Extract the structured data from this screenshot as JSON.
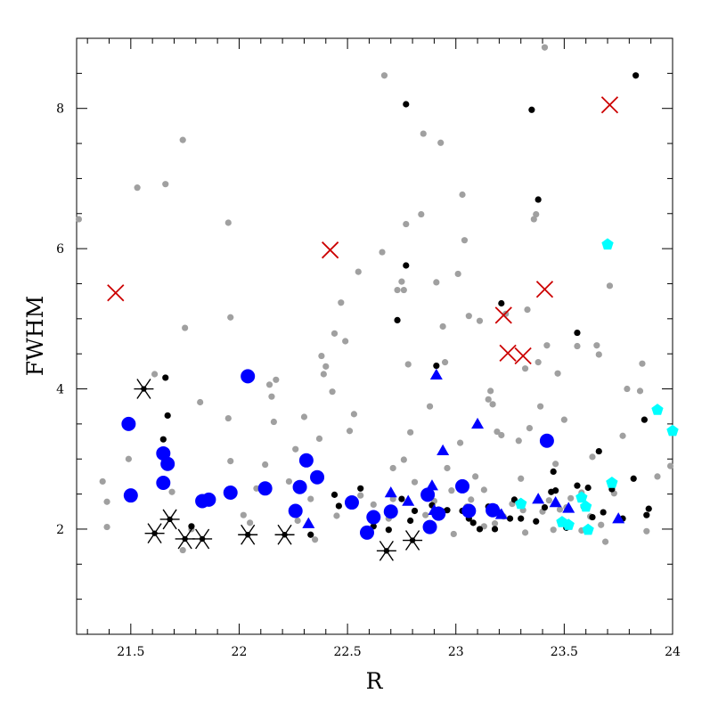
{
  "chart_data": {
    "type": "scatter",
    "title": "",
    "xlabel": "R",
    "ylabel": "FWHM",
    "xlim": [
      21.25,
      24.0
    ],
    "ylim": [
      0.5,
      9.0
    ],
    "grid": false,
    "legend": "none",
    "x_ticks": [
      "21.5",
      "22",
      "22.5",
      "23",
      "23.5",
      "24"
    ],
    "x_tick_values": [
      21.5,
      22.0,
      22.5,
      23.0,
      23.5,
      24.0
    ],
    "y_ticks": [
      "2",
      "4",
      "6",
      "8"
    ],
    "y_tick_values": [
      2,
      4,
      6,
      8
    ],
    "series": [
      {
        "marker": "small-circle",
        "color": "#a0a0a0",
        "points": [
          [
            21.26,
            6.42
          ],
          [
            21.37,
            2.68
          ],
          [
            21.39,
            2.39
          ],
          [
            21.39,
            2.03
          ],
          [
            21.53,
            6.87
          ],
          [
            21.49,
            3.0
          ],
          [
            21.61,
            4.21
          ],
          [
            21.66,
            6.92
          ],
          [
            21.69,
            2.53
          ],
          [
            21.74,
            7.55
          ],
          [
            21.75,
            4.87
          ],
          [
            21.74,
            1.7
          ],
          [
            21.78,
            2.0
          ],
          [
            21.82,
            3.81
          ],
          [
            21.95,
            6.37
          ],
          [
            21.95,
            3.58
          ],
          [
            21.96,
            5.02
          ],
          [
            21.96,
            2.97
          ],
          [
            22.02,
            2.2
          ],
          [
            22.05,
            2.09
          ],
          [
            22.08,
            2.58
          ],
          [
            22.12,
            2.92
          ],
          [
            22.14,
            4.06
          ],
          [
            22.15,
            3.89
          ],
          [
            22.17,
            4.13
          ],
          [
            22.16,
            3.53
          ],
          [
            22.23,
            2.68
          ],
          [
            22.26,
            3.14
          ],
          [
            22.27,
            2.12
          ],
          [
            22.3,
            3.6
          ],
          [
            22.33,
            2.43
          ],
          [
            22.35,
            1.85
          ],
          [
            22.37,
            3.29
          ],
          [
            22.38,
            4.47
          ],
          [
            22.39,
            4.21
          ],
          [
            22.4,
            4.32
          ],
          [
            22.43,
            3.96
          ],
          [
            22.44,
            4.79
          ],
          [
            22.47,
            5.23
          ],
          [
            22.49,
            4.68
          ],
          [
            22.51,
            3.4
          ],
          [
            22.53,
            3.64
          ],
          [
            22.55,
            5.67
          ],
          [
            22.56,
            2.48
          ],
          [
            22.58,
            2.0
          ],
          [
            22.6,
            1.9
          ],
          [
            22.62,
            2.35
          ],
          [
            22.66,
            5.95
          ],
          [
            22.67,
            8.47
          ],
          [
            22.69,
            2.15
          ],
          [
            22.71,
            2.87
          ],
          [
            22.73,
            5.41
          ],
          [
            22.75,
            5.53
          ],
          [
            22.76,
            5.41
          ],
          [
            22.76,
            2.99
          ],
          [
            22.77,
            6.35
          ],
          [
            22.78,
            4.35
          ],
          [
            22.79,
            3.38
          ],
          [
            22.81,
            2.67
          ],
          [
            22.84,
            6.49
          ],
          [
            22.85,
            7.64
          ],
          [
            22.88,
            3.75
          ],
          [
            22.9,
            2.4
          ],
          [
            22.91,
            5.52
          ],
          [
            22.93,
            7.51
          ],
          [
            22.94,
            4.89
          ],
          [
            22.95,
            4.38
          ],
          [
            22.96,
            2.87
          ],
          [
            22.98,
            2.55
          ],
          [
            22.99,
            1.93
          ],
          [
            23.01,
            5.64
          ],
          [
            23.02,
            3.23
          ],
          [
            23.03,
            6.77
          ],
          [
            23.04,
            6.12
          ],
          [
            23.06,
            5.04
          ],
          [
            23.07,
            2.42
          ],
          [
            23.09,
            2.75
          ],
          [
            23.1,
            3.49
          ],
          [
            23.11,
            4.97
          ],
          [
            23.13,
            2.56
          ],
          [
            23.15,
            3.85
          ],
          [
            23.16,
            3.97
          ],
          [
            23.18,
            2.08
          ],
          [
            23.17,
            3.78
          ],
          [
            23.19,
            3.39
          ],
          [
            23.21,
            3.34
          ],
          [
            23.23,
            5.07
          ],
          [
            23.26,
            2.36
          ],
          [
            23.29,
            3.26
          ],
          [
            23.3,
            2.72
          ],
          [
            23.31,
            2.27
          ],
          [
            23.32,
            4.29
          ],
          [
            23.33,
            5.13
          ],
          [
            23.34,
            3.44
          ],
          [
            23.36,
            6.42
          ],
          [
            23.37,
            6.49
          ],
          [
            23.38,
            4.38
          ],
          [
            23.39,
            3.75
          ],
          [
            23.41,
            8.87
          ],
          [
            23.42,
            4.62
          ],
          [
            23.43,
            2.41
          ],
          [
            23.45,
            1.99
          ],
          [
            23.46,
            2.93
          ],
          [
            23.47,
            4.22
          ],
          [
            23.48,
            2.28
          ],
          [
            23.5,
            3.56
          ],
          [
            23.51,
            2.31
          ],
          [
            23.53,
            2.44
          ],
          [
            23.56,
            4.61
          ],
          [
            23.58,
            1.98
          ],
          [
            23.62,
            2.18
          ],
          [
            23.63,
            3.03
          ],
          [
            23.65,
            4.62
          ],
          [
            23.66,
            4.49
          ],
          [
            23.67,
            2.06
          ],
          [
            23.69,
            1.82
          ],
          [
            23.71,
            5.47
          ],
          [
            23.72,
            2.69
          ],
          [
            23.73,
            2.51
          ],
          [
            23.77,
            3.33
          ],
          [
            23.79,
            4.0
          ],
          [
            23.85,
            3.97
          ],
          [
            23.86,
            4.36
          ],
          [
            23.88,
            1.97
          ],
          [
            23.93,
            2.75
          ],
          [
            23.99,
            2.9
          ],
          [
            22.71,
            2.43
          ],
          [
            22.45,
            2.19
          ],
          [
            23.22,
            2.18
          ],
          [
            23.4,
            2.25
          ],
          [
            22.92,
            2.28
          ],
          [
            23.13,
            2.04
          ],
          [
            23.05,
            2.32
          ],
          [
            23.58,
            2.52
          ],
          [
            22.86,
            2.2
          ],
          [
            23.32,
            1.95
          ]
        ]
      },
      {
        "marker": "small-circle",
        "color": "#000000",
        "points": [
          [
            21.66,
            4.16
          ],
          [
            21.67,
            3.62
          ],
          [
            21.65,
            3.28
          ],
          [
            21.78,
            2.04
          ],
          [
            22.33,
            1.92
          ],
          [
            22.44,
            2.49
          ],
          [
            22.46,
            2.33
          ],
          [
            22.56,
            2.58
          ],
          [
            22.69,
            1.99
          ],
          [
            22.73,
            4.98
          ],
          [
            22.75,
            2.43
          ],
          [
            22.77,
            8.06
          ],
          [
            22.77,
            5.76
          ],
          [
            22.81,
            2.26
          ],
          [
            22.91,
            4.33
          ],
          [
            22.94,
            2.25
          ],
          [
            22.96,
            2.27
          ],
          [
            23.03,
            2.26
          ],
          [
            23.06,
            2.15
          ],
          [
            23.08,
            2.09
          ],
          [
            23.11,
            2.0
          ],
          [
            23.15,
            2.32
          ],
          [
            23.18,
            2.0
          ],
          [
            23.21,
            5.22
          ],
          [
            23.27,
            2.42
          ],
          [
            23.3,
            2.15
          ],
          [
            23.35,
            7.98
          ],
          [
            23.38,
            6.7
          ],
          [
            23.37,
            2.11
          ],
          [
            23.41,
            2.31
          ],
          [
            23.45,
            2.82
          ],
          [
            23.44,
            2.53
          ],
          [
            23.46,
            2.55
          ],
          [
            23.56,
            2.62
          ],
          [
            23.56,
            4.8
          ],
          [
            23.59,
            2.32
          ],
          [
            23.61,
            2.59
          ],
          [
            23.66,
            3.11
          ],
          [
            23.68,
            2.24
          ],
          [
            23.72,
            2.57
          ],
          [
            23.77,
            2.15
          ],
          [
            23.82,
            2.72
          ],
          [
            23.83,
            8.47
          ],
          [
            23.87,
            3.56
          ],
          [
            23.88,
            2.2
          ],
          [
            23.89,
            2.29
          ],
          [
            22.62,
            2.04
          ],
          [
            22.79,
            2.12
          ],
          [
            22.89,
            2.34
          ],
          [
            23.25,
            2.15
          ],
          [
            23.51,
            2.02
          ],
          [
            23.63,
            2.17
          ]
        ]
      },
      {
        "marker": "large-circle",
        "color": "#0000ff",
        "points": [
          [
            21.49,
            3.5
          ],
          [
            21.5,
            2.48
          ],
          [
            21.65,
            3.08
          ],
          [
            21.67,
            2.93
          ],
          [
            21.65,
            2.66
          ],
          [
            21.83,
            2.4
          ],
          [
            21.86,
            2.42
          ],
          [
            21.96,
            2.52
          ],
          [
            22.04,
            4.18
          ],
          [
            22.12,
            2.58
          ],
          [
            22.26,
            2.26
          ],
          [
            22.28,
            2.6
          ],
          [
            22.31,
            2.98
          ],
          [
            22.36,
            2.74
          ],
          [
            22.52,
            2.38
          ],
          [
            22.59,
            1.95
          ],
          [
            22.62,
            2.17
          ],
          [
            22.7,
            2.25
          ],
          [
            22.87,
            2.49
          ],
          [
            22.88,
            2.03
          ],
          [
            22.92,
            2.22
          ],
          [
            23.03,
            2.61
          ],
          [
            23.06,
            2.26
          ],
          [
            23.17,
            2.27
          ],
          [
            23.42,
            3.26
          ]
        ]
      },
      {
        "marker": "triangle",
        "color": "#0000ff",
        "points": [
          [
            22.32,
            2.08
          ],
          [
            22.7,
            2.52
          ],
          [
            22.78,
            2.4
          ],
          [
            22.89,
            2.62
          ],
          [
            22.9,
            2.27
          ],
          [
            22.91,
            4.2
          ],
          [
            22.94,
            3.12
          ],
          [
            23.1,
            3.5
          ],
          [
            23.19,
            2.27
          ],
          [
            23.21,
            2.21
          ],
          [
            23.38,
            2.43
          ],
          [
            23.46,
            2.38
          ],
          [
            23.52,
            2.3
          ],
          [
            23.75,
            2.15
          ]
        ]
      },
      {
        "marker": "pentagon",
        "color": "#00ffff",
        "points": [
          [
            23.3,
            2.36
          ],
          [
            23.49,
            2.1
          ],
          [
            23.52,
            2.06
          ],
          [
            23.58,
            2.45
          ],
          [
            23.6,
            2.32
          ],
          [
            23.61,
            1.99
          ],
          [
            23.7,
            6.06
          ],
          [
            23.72,
            2.66
          ],
          [
            23.93,
            3.7
          ],
          [
            24.0,
            3.4
          ]
        ]
      },
      {
        "marker": "cross",
        "color": "#cc0000",
        "points": [
          [
            21.43,
            5.37
          ],
          [
            22.42,
            5.98
          ],
          [
            23.22,
            5.05
          ],
          [
            23.24,
            4.51
          ],
          [
            23.31,
            4.47
          ],
          [
            23.41,
            5.42
          ],
          [
            23.71,
            8.05
          ]
        ]
      },
      {
        "marker": "asterisk",
        "color": "#000000",
        "points": [
          [
            21.56,
            4.0
          ],
          [
            21.61,
            1.94
          ],
          [
            21.68,
            2.14
          ],
          [
            21.75,
            1.86
          ],
          [
            21.83,
            1.86
          ],
          [
            22.04,
            1.92
          ],
          [
            22.21,
            1.92
          ],
          [
            22.68,
            1.69
          ],
          [
            22.8,
            1.84
          ]
        ]
      }
    ]
  }
}
